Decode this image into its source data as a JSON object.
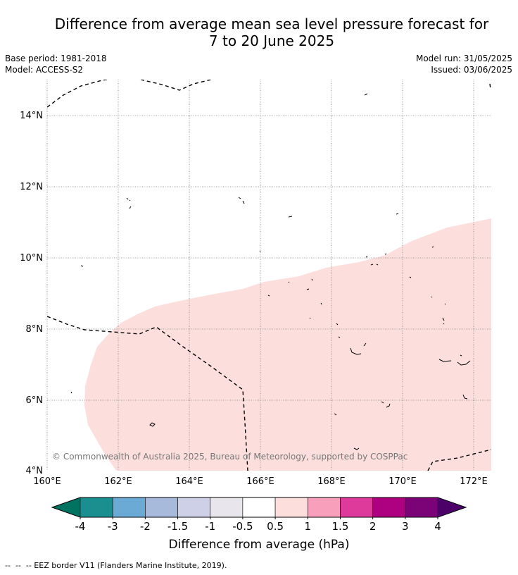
{
  "title_line1": "Difference from average mean sea level pressure forecast for",
  "title_line2": "7 to 20 June 2025",
  "base_period": "Base period: 1981-2018",
  "model": "Model: ACCESS-S2",
  "model_run": "Model run: 31/05/2025",
  "issued": "Issued: 03/06/2025",
  "copyright": "© Commonwealth of Australia 2025, Bureau of Meteorology, supported by COSPPac",
  "footer": "--  --  -- EEZ border V11 (Flanders Marine Institute, 2019).",
  "map": {
    "lat_ticks": [
      "14°N",
      "12°N",
      "10°N",
      "8°N",
      "6°N",
      "4°N"
    ],
    "lon_ticks": [
      "160°E",
      "162°E",
      "164°E",
      "166°E",
      "168°E",
      "170°E",
      "172°E"
    ],
    "shading_category": "0.5 to 1 hPa",
    "shading_color": "#fcdedd"
  },
  "colorbar": {
    "label": "Difference from average (hPa)",
    "tick_labels": [
      "-4",
      "-3",
      "-2",
      "-1.5",
      "-1",
      "-0.5",
      "0.5",
      "1",
      "1.5",
      "2",
      "3",
      "4"
    ],
    "under_color": "#007260",
    "over_color": "#4b006a",
    "colors": [
      "#1b8f8f",
      "#6aaad4",
      "#a8badc",
      "#cdd0e6",
      "#e8e6ec",
      "#ffffff",
      "#fcdedd",
      "#f8a0bb",
      "#de3a9c",
      "#ae0181",
      "#7c0277"
    ]
  }
}
